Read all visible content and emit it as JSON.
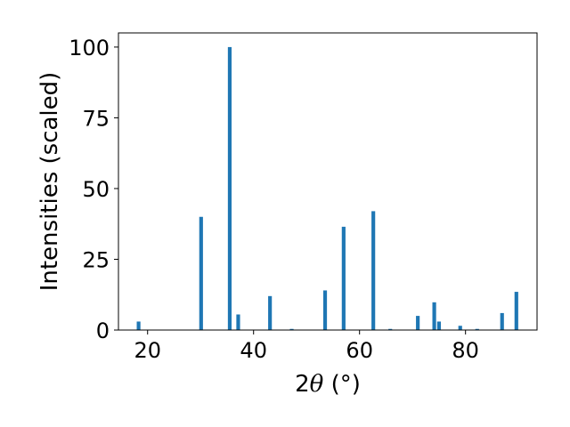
{
  "chart_data": {
    "type": "bar",
    "title": "",
    "xlabel_prefix": "2",
    "xlabel_symbol": "θ",
    "xlabel_suffix": " (°)",
    "ylabel": "Intensities (scaled)",
    "xlim": [
      14.5,
      93.5
    ],
    "ylim": [
      0,
      105
    ],
    "xticks": [
      20,
      40,
      60,
      80
    ],
    "yticks": [
      0,
      25,
      50,
      75,
      100
    ],
    "bar_width_deg": 0.7,
    "bar_color": "#1f77b4",
    "grid": false,
    "legend": "none",
    "x": [
      18.3,
      30.1,
      35.5,
      37.1,
      43.1,
      47.2,
      53.5,
      57.0,
      62.6,
      65.8,
      71.0,
      74.1,
      75.0,
      79.0,
      82.2,
      86.9,
      89.6
    ],
    "values": [
      3.0,
      40.0,
      100.0,
      5.5,
      12.0,
      0.4,
      14.0,
      36.5,
      42.0,
      0.4,
      5.0,
      9.8,
      3.0,
      1.5,
      0.4,
      6.0,
      13.5
    ]
  }
}
